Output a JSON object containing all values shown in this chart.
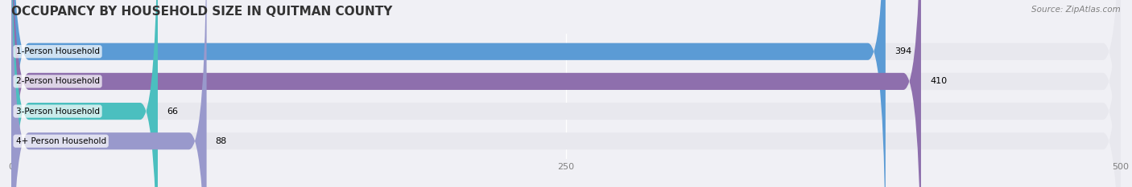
{
  "title": "OCCUPANCY BY HOUSEHOLD SIZE IN QUITMAN COUNTY",
  "source": "Source: ZipAtlas.com",
  "categories": [
    "1-Person Household",
    "2-Person Household",
    "3-Person Household",
    "4+ Person Household"
  ],
  "values": [
    394,
    410,
    66,
    88
  ],
  "bar_colors": [
    "#5b9bd5",
    "#8e6fad",
    "#4bbfbf",
    "#9999cc"
  ],
  "value_colors": [
    "white",
    "white",
    "black",
    "black"
  ],
  "xlim": [
    0,
    500
  ],
  "xticks": [
    0,
    250,
    500
  ],
  "background_color": "#f0f0f5",
  "bar_bg_color": "#e8e8ee",
  "title_fontsize": 11,
  "bar_height": 0.55,
  "figsize": [
    14.06,
    2.33
  ],
  "dpi": 100
}
